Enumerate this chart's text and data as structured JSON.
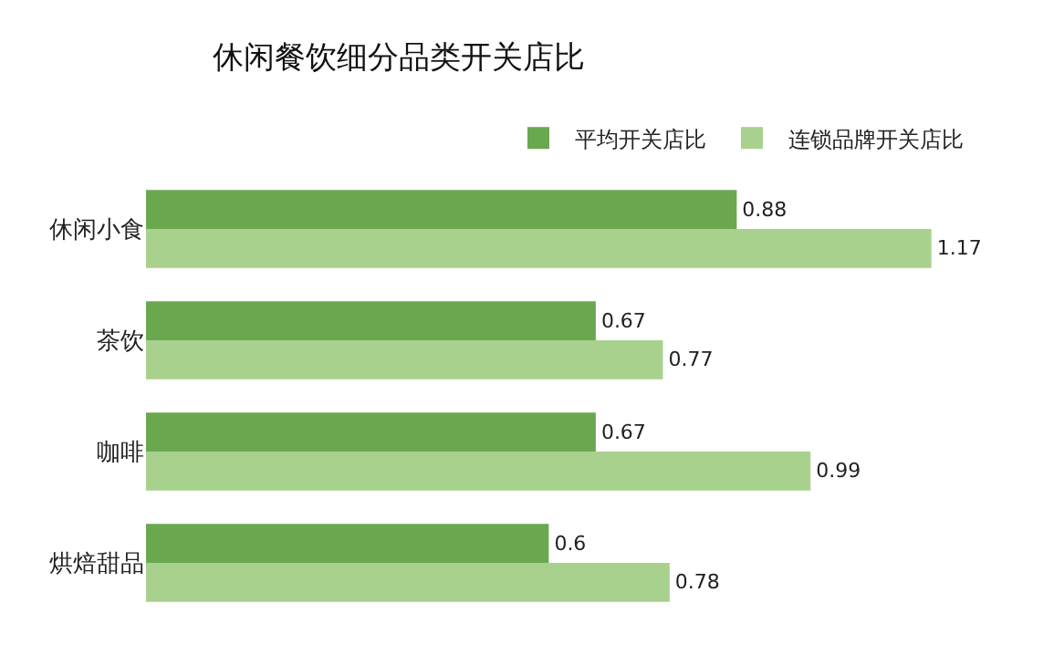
{
  "chart_data": {
    "type": "bar",
    "orientation": "horizontal",
    "title": "休闲餐饮细分品类开关店比",
    "categories": [
      "休闲小食",
      "茶饮",
      "咖啡",
      "烘焙甜品"
    ],
    "series": [
      {
        "name": "平均开关店比",
        "color": "#6aa84f",
        "values": [
          0.88,
          0.67,
          0.67,
          0.6
        ]
      },
      {
        "name": "连锁品牌开关店比",
        "color": "#a9d18e",
        "values": [
          1.17,
          0.77,
          0.99,
          0.78
        ]
      }
    ],
    "data_labels": true,
    "legend": "top right",
    "grid": false,
    "tick_labels": "y"
  }
}
